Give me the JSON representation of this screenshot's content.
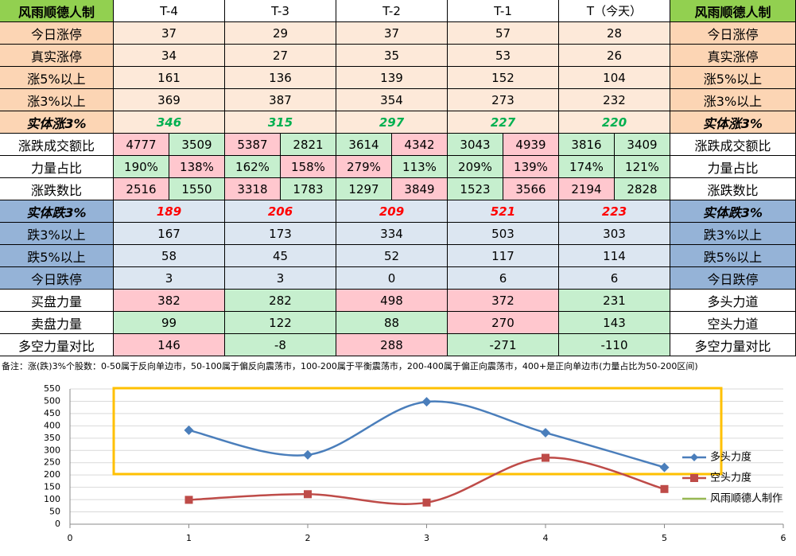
{
  "table": {
    "header": [
      "风雨顺德人制",
      "T-4",
      "T-3",
      "T-2",
      "T-1",
      "T（今天）",
      "风雨顺德人制"
    ],
    "rows": [
      {
        "label": "今日涨停",
        "values": [
          "37",
          "29",
          "37",
          "57",
          "28"
        ],
        "right": "今日涨停"
      },
      {
        "label": "真实涨停",
        "values": [
          "34",
          "27",
          "35",
          "53",
          "26"
        ],
        "right": "真实涨停"
      },
      {
        "label": "涨5%以上",
        "values": [
          "161",
          "136",
          "139",
          "152",
          "104"
        ],
        "right": "涨5%以上"
      },
      {
        "label": "涨3%以上",
        "values": [
          "369",
          "387",
          "354",
          "273",
          "232"
        ],
        "right": "涨3%以上"
      },
      {
        "label": "实体涨3%",
        "values": [
          "346",
          "315",
          "297",
          "227",
          "220"
        ],
        "right": "实体涨3%"
      },
      {
        "label": "涨跌成交额比",
        "values": [
          [
            "4777",
            "3509"
          ],
          [
            "5387",
            "2821"
          ],
          [
            "3614",
            "4342"
          ],
          [
            "3043",
            "4939"
          ],
          [
            "3816",
            "3409"
          ]
        ],
        "colors": [
          [
            "#ffc7ce",
            "#c6efce"
          ],
          [
            "#ffc7ce",
            "#c6efce"
          ],
          [
            "#c6efce",
            "#ffc7ce"
          ],
          [
            "#c6efce",
            "#ffc7ce"
          ],
          [
            "#c6efce",
            "#c6efce"
          ]
        ],
        "right": "涨跌成交额比"
      },
      {
        "label": "力量占比",
        "values": [
          [
            "190%",
            "138%"
          ],
          [
            "162%",
            "158%"
          ],
          [
            "279%",
            "113%"
          ],
          [
            "209%",
            "139%"
          ],
          [
            "174%",
            "121%"
          ]
        ],
        "colors": [
          [
            "#c6efce",
            "#ffc7ce"
          ],
          [
            "#c6efce",
            "#ffc7ce"
          ],
          [
            "#ffc7ce",
            "#c6efce"
          ],
          [
            "#c6efce",
            "#ffc7ce"
          ],
          [
            "#c6efce",
            "#c6efce"
          ]
        ],
        "right": "力量占比"
      },
      {
        "label": "涨跌数比",
        "values": [
          [
            "2516",
            "1550"
          ],
          [
            "3318",
            "1783"
          ],
          [
            "1297",
            "3849"
          ],
          [
            "1523",
            "3566"
          ],
          [
            "2194",
            "2828"
          ]
        ],
        "colors": [
          [
            "#ffc7ce",
            "#c6efce"
          ],
          [
            "#ffc7ce",
            "#c6efce"
          ],
          [
            "#c6efce",
            "#ffc7ce"
          ],
          [
            "#c6efce",
            "#ffc7ce"
          ],
          [
            "#ffc7ce",
            "#c6efce"
          ]
        ],
        "right": "涨跌数比"
      },
      {
        "label": "实体跌3%",
        "values": [
          "189",
          "206",
          "209",
          "521",
          "223"
        ],
        "right": "实体跌3%"
      },
      {
        "label": "跌3%以上",
        "values": [
          "167",
          "173",
          "334",
          "503",
          "303"
        ],
        "right": "跌3%以上"
      },
      {
        "label": "跌5%以上",
        "values": [
          "58",
          "45",
          "52",
          "117",
          "114"
        ],
        "right": "跌5%以上"
      },
      {
        "label": "今日跌停",
        "values": [
          "3",
          "3",
          "0",
          "6",
          "6"
        ],
        "right": "今日跌停"
      },
      {
        "label": "买盘力量",
        "values": [
          "382",
          "282",
          "498",
          "372",
          "231"
        ],
        "colors": [
          "#ffc7ce",
          "#c6efce",
          "#ffc7ce",
          "#ffc7ce",
          "#c6efce"
        ],
        "right": "多头力道"
      },
      {
        "label": "卖盘力量",
        "values": [
          "99",
          "122",
          "88",
          "270",
          "143"
        ],
        "colors": [
          "#c6efce",
          "#c6efce",
          "#c6efce",
          "#ffc7ce",
          "#c6efce"
        ],
        "right": "空头力道"
      },
      {
        "label": "多空力量对比",
        "values": [
          "146",
          "-8",
          "288",
          "-271",
          "-110"
        ],
        "colors": [
          "#ffc7ce",
          "#c6efce",
          "#ffc7ce",
          "#c6efce",
          "#c6efce"
        ],
        "right": "多空力量对比"
      }
    ],
    "note": "备注：涨(跌)3%个股数：0-50属于反向单边市，50-100属于偏反向震荡市，100-200属于平衡震荡市，200-400属于偏正向震荡市，400+是正向单边市(力量占比为50-200区间)"
  },
  "chart_data": {
    "type": "line",
    "x": [
      1,
      2,
      3,
      4,
      5
    ],
    "series": [
      {
        "name": "多头力度",
        "color": "#4a7ebb",
        "values": [
          382,
          282,
          498,
          372,
          231
        ]
      },
      {
        "name": "空头力度",
        "color": "#be4b48",
        "values": [
          99,
          122,
          88,
          270,
          143
        ]
      },
      {
        "name": "风雨顺德人制作",
        "color": "#98b954",
        "values": [
          null,
          null,
          null,
          null,
          null
        ]
      }
    ],
    "xlim": [
      0,
      6
    ],
    "xticks": [
      0,
      1,
      2,
      3,
      4,
      5,
      6
    ],
    "ylim": [
      0,
      550
    ],
    "yticks": [
      0,
      50,
      100,
      150,
      200,
      250,
      300,
      350,
      400,
      450,
      500,
      550
    ],
    "grid": true,
    "legend": "right"
  }
}
